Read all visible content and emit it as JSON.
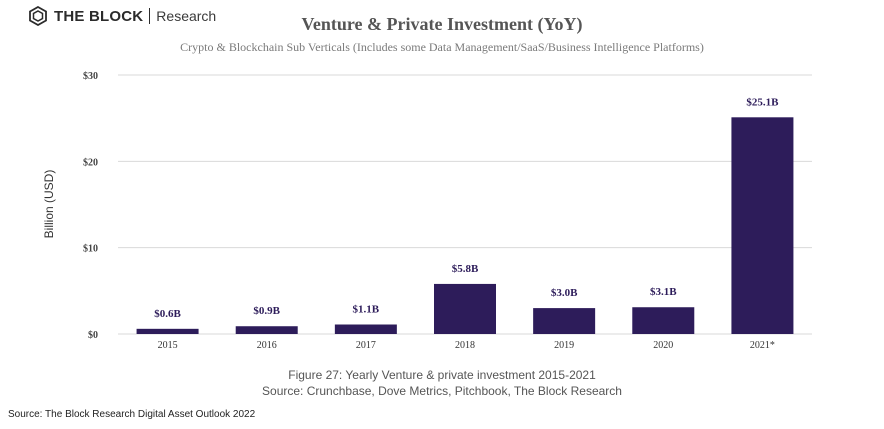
{
  "brand": {
    "name": "THE BLOCK",
    "division": "Research"
  },
  "colors": {
    "bar": "#2d1c5a",
    "label": "#2d1c5a",
    "grid": "#d9d9d9",
    "axis_text": "#444444"
  },
  "chart_data": {
    "type": "bar",
    "title": "Venture & Private Investment (YoY)",
    "subtitle": "Crypto & Blockchain Sub Verticals (Includes some Data Management/SaaS/Business Intelligence Platforms)",
    "xlabel": "",
    "ylabel": "Billion (USD)",
    "categories": [
      "2015",
      "2016",
      "2017",
      "2018",
      "2019",
      "2020",
      "2021*"
    ],
    "values": [
      0.6,
      0.9,
      1.1,
      5.8,
      3.0,
      3.1,
      25.1
    ],
    "data_labels": [
      "$0.6B",
      "$0.9B",
      "$1.1B",
      "$5.8B",
      "$3.0B",
      "$3.1B",
      "$25.1B"
    ],
    "ylim": [
      0,
      30
    ],
    "yticks": [
      0,
      10,
      20,
      30
    ],
    "ytick_labels": [
      "$0",
      "$10",
      "$20",
      "$30"
    ],
    "grid": true,
    "legend": "none"
  },
  "caption": {
    "figure": "Figure 27: Yearly Venture & private investment 2015-2021",
    "source": "Source:  Crunchbase, Dove Metrics, Pitchbook, The Block Research"
  },
  "footer": {
    "source": "Source: The Block Research Digital Asset Outlook 2022"
  }
}
